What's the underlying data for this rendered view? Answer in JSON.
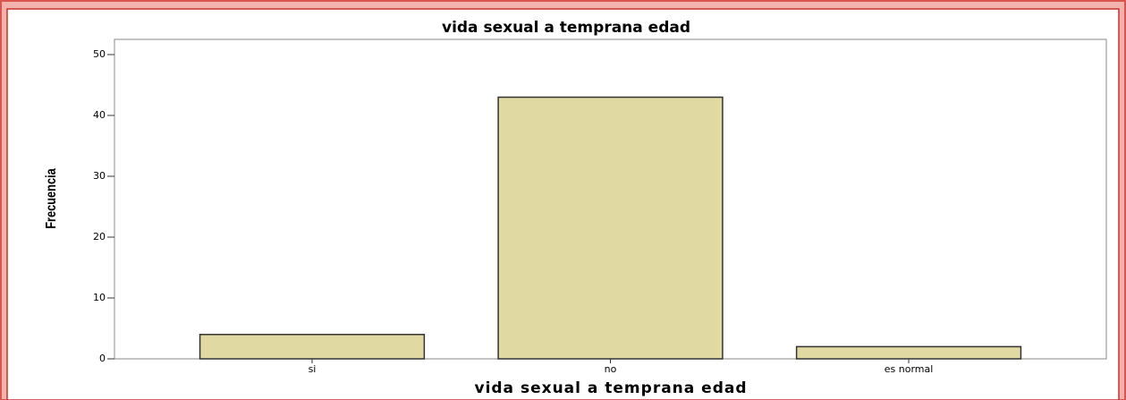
{
  "chart_data": {
    "type": "bar",
    "title": "vida sexual a temprana edad",
    "x_label": "vida sexual a temprana edad",
    "y_label": "Frecuencia",
    "categories": [
      "si",
      "no",
      "es normal"
    ],
    "values": [
      4,
      43,
      2
    ],
    "color": "#e0d9a1",
    "ylim": [
      0,
      52.5
    ],
    "yticks": [
      0,
      10,
      20,
      30,
      40,
      50
    ]
  }
}
